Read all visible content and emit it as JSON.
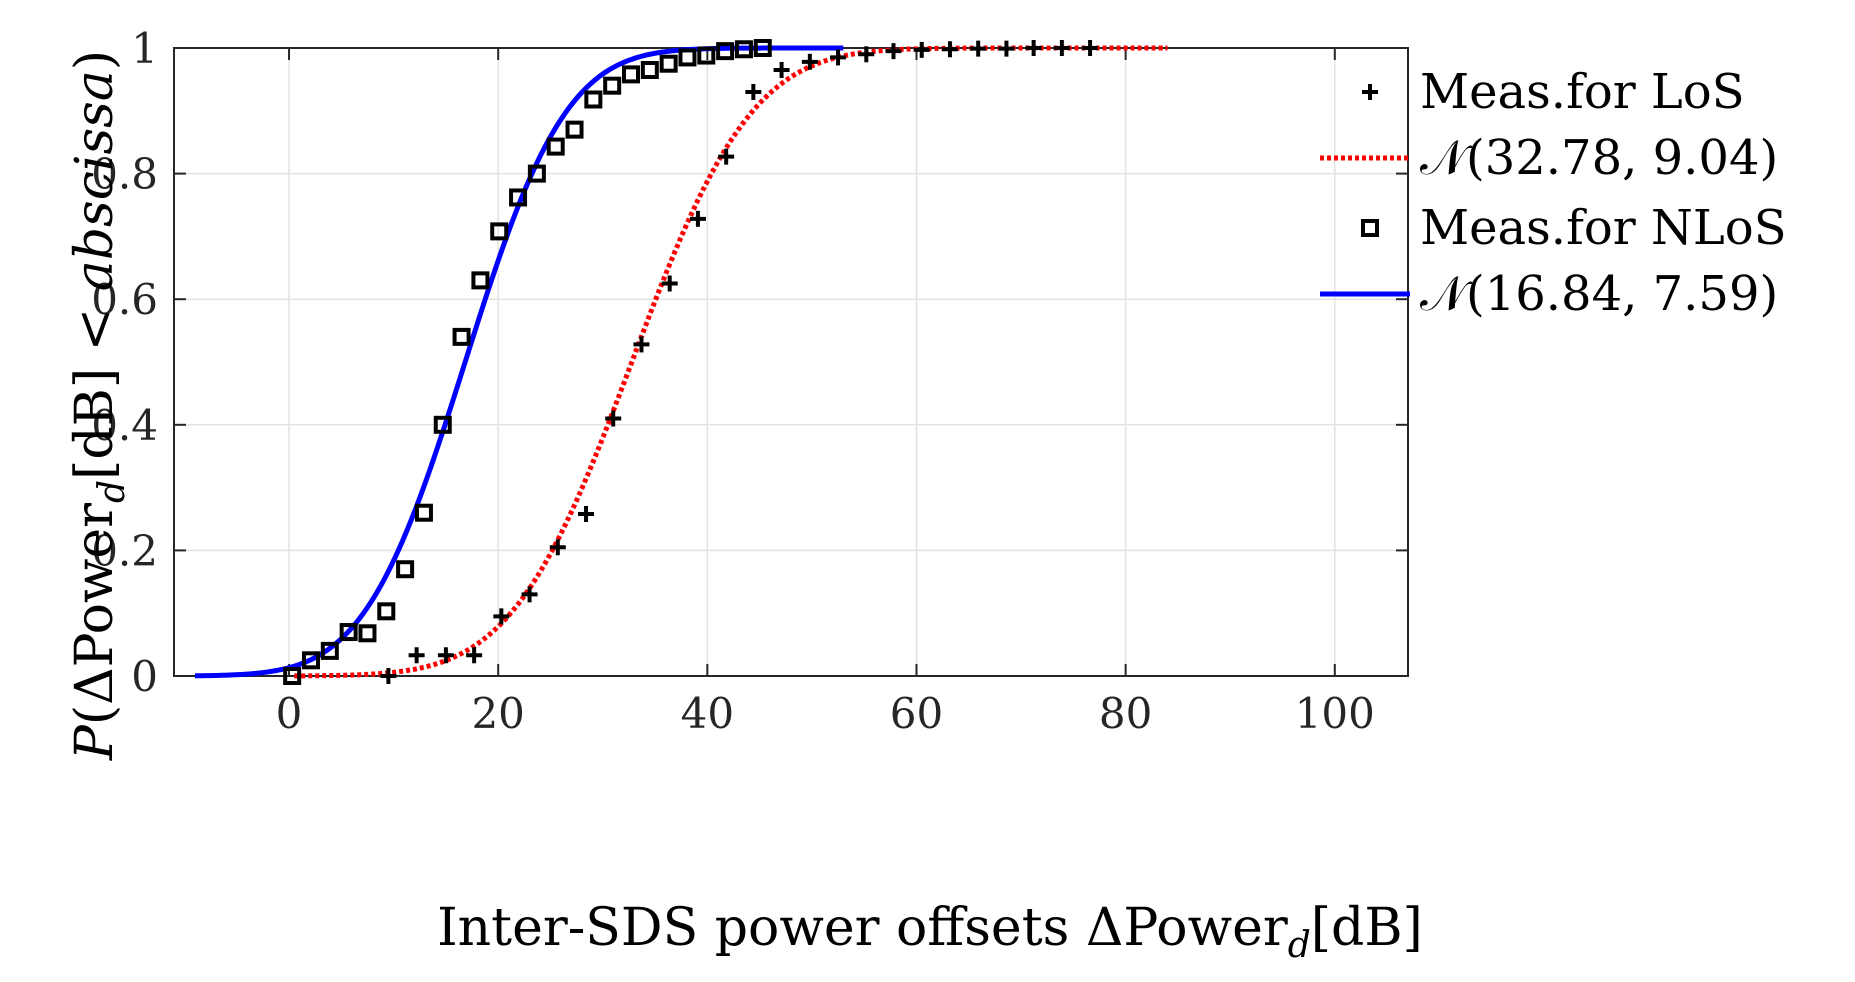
{
  "colors": {
    "los_fit": "#ff0000",
    "nlos_fit": "#0000ff",
    "markers": "#000000",
    "grid": "#e3e3e3",
    "axis": "#262626"
  },
  "chart_data": {
    "type": "line",
    "title": "",
    "xlabel": {
      "prefix": "Inter-SDS power offsets ",
      "delta": "Δ",
      "power": "Power",
      "sub": "d",
      "suffix": "[dB]"
    },
    "ylabel": {
      "p": "P",
      "open": "(",
      "delta": "Δ",
      "power": "Power",
      "sub": "d",
      "unit": "[dB] < ",
      "abscissa": "abscissa",
      "close": ")"
    },
    "xlim": [
      -11,
      107
    ],
    "ylim": [
      0,
      1
    ],
    "xticks": [
      "0",
      "20",
      "40",
      "60",
      "80",
      "100"
    ],
    "xtick_values": [
      0,
      20,
      40,
      60,
      80,
      100
    ],
    "yticks": [
      "0",
      "0.2",
      "0.4",
      "0.6",
      "0.8",
      "1"
    ],
    "ytick_values": [
      0,
      0.2,
      0.4,
      0.6,
      0.8,
      1
    ],
    "grid": true,
    "legend_position": "top-right",
    "legend": [
      {
        "label": "Meas.for LoS",
        "marker": "plus"
      },
      {
        "label": "𝒩(32.78, 9.04)",
        "line": "dotted-red"
      },
      {
        "label": "Meas.for NLoS",
        "marker": "square"
      },
      {
        "label": "𝒩(16.84, 7.59)",
        "line": "solid-blue"
      }
    ],
    "series": [
      {
        "name": "Meas.for LoS",
        "kind": "scatter",
        "marker": "plus",
        "points": [
          [
            9.5,
            0.0
          ],
          [
            12.2,
            0.033
          ],
          [
            15.0,
            0.033
          ],
          [
            17.7,
            0.033
          ],
          [
            20.3,
            0.095
          ],
          [
            23.0,
            0.13
          ],
          [
            25.7,
            0.205
          ],
          [
            28.4,
            0.258
          ],
          [
            31.0,
            0.41
          ],
          [
            33.7,
            0.528
          ],
          [
            36.4,
            0.625
          ],
          [
            39.1,
            0.728
          ],
          [
            41.8,
            0.827
          ],
          [
            44.4,
            0.93
          ],
          [
            47.1,
            0.965
          ],
          [
            49.8,
            0.978
          ],
          [
            52.5,
            0.985
          ],
          [
            55.2,
            0.99
          ],
          [
            57.8,
            0.995
          ],
          [
            60.5,
            0.997
          ],
          [
            63.2,
            0.998
          ],
          [
            65.9,
            0.999
          ],
          [
            68.6,
            0.999
          ],
          [
            71.2,
            1.0
          ],
          [
            73.9,
            1.0
          ],
          [
            76.6,
            1.0
          ]
        ]
      },
      {
        "name": "𝒩(32.78, 9.04)",
        "kind": "normal_cdf",
        "mu": 32.78,
        "sigma": 9.04,
        "x_range": [
          0.5,
          84
        ],
        "style": "dotted"
      },
      {
        "name": "Meas.for NLoS",
        "kind": "scatter",
        "marker": "square",
        "points": [
          [
            0.3,
            0.0
          ],
          [
            2.1,
            0.025
          ],
          [
            3.9,
            0.04
          ],
          [
            5.7,
            0.07
          ],
          [
            7.5,
            0.068
          ],
          [
            9.3,
            0.103
          ],
          [
            11.1,
            0.17
          ],
          [
            12.9,
            0.26
          ],
          [
            14.7,
            0.4
          ],
          [
            16.5,
            0.54
          ],
          [
            18.3,
            0.63
          ],
          [
            20.1,
            0.708
          ],
          [
            21.9,
            0.762
          ],
          [
            23.7,
            0.8
          ],
          [
            25.5,
            0.843
          ],
          [
            27.3,
            0.87
          ],
          [
            29.1,
            0.918
          ],
          [
            30.9,
            0.94
          ],
          [
            32.7,
            0.958
          ],
          [
            34.5,
            0.965
          ],
          [
            36.3,
            0.975
          ],
          [
            38.1,
            0.985
          ],
          [
            39.9,
            0.988
          ],
          [
            41.7,
            0.995
          ],
          [
            43.5,
            0.998
          ],
          [
            45.3,
            1.0
          ]
        ]
      },
      {
        "name": "𝒩(16.84, 7.59)",
        "kind": "normal_cdf",
        "mu": 16.84,
        "sigma": 7.59,
        "x_range": [
          -9,
          53
        ],
        "style": "solid"
      }
    ]
  }
}
